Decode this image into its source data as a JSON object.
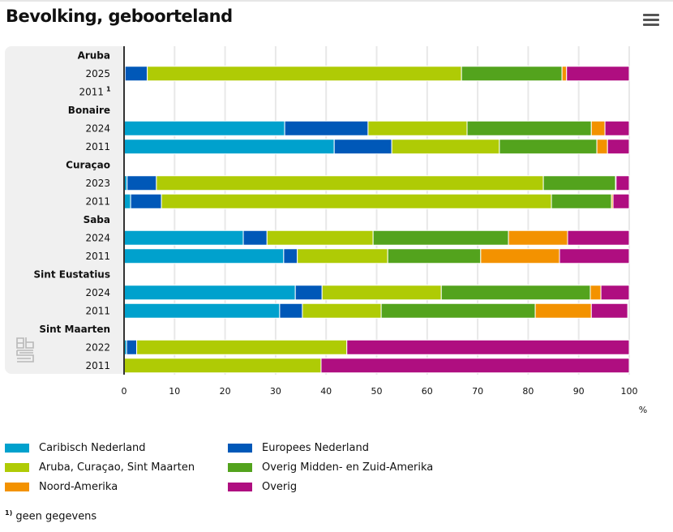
{
  "header": {
    "title": "Bevolking, geboorteland",
    "menu_icon": "hamburger-menu-icon"
  },
  "footnote": {
    "marker": "1)",
    "text": "geen gegevens"
  },
  "chart_data": {
    "type": "bar",
    "orientation": "horizontal",
    "stacked": true,
    "title": "Bevolking, geboorteland",
    "xlabel": "%",
    "ylabel": "",
    "xlim": [
      0,
      100
    ],
    "xticks": [
      "0",
      "10",
      "20",
      "30",
      "40",
      "50",
      "60",
      "70",
      "80",
      "90",
      "100"
    ],
    "grid": true,
    "legend_position": "bottom",
    "series": [
      {
        "name": "Caribisch Nederland",
        "color": "#00a1cd"
      },
      {
        "name": "Europees Nederland",
        "color": "#0058b8"
      },
      {
        "name": "Aruba, Curaçao, Sint Maarten",
        "color": "#afcb05"
      },
      {
        "name": "Overig Midden- en Zuid-Amerika",
        "color": "#53a31d"
      },
      {
        "name": "Noord-Amerika",
        "color": "#f39200"
      },
      {
        "name": "Overig",
        "color": "#af0e80"
      }
    ],
    "groups": [
      {
        "name": "Aruba",
        "rows": [
          {
            "label": "2025",
            "values": [
              0.2,
              4.4,
              62.2,
              19.9,
              0.9,
              12.4
            ]
          },
          {
            "label": "2011",
            "footnote": "1",
            "values": null
          }
        ]
      },
      {
        "name": "Bonaire",
        "rows": [
          {
            "label": "2024",
            "values": [
              31.8,
              16.5,
              19.6,
              24.6,
              2.7,
              4.8
            ]
          },
          {
            "label": "2011",
            "values": [
              41.6,
              11.4,
              21.3,
              19.3,
              2.1,
              4.3
            ]
          }
        ]
      },
      {
        "name": "Curaçao",
        "rows": [
          {
            "label": "2023",
            "values": [
              0.6,
              5.8,
              76.6,
              14.3,
              0.1,
              2.6
            ]
          },
          {
            "label": "2011",
            "values": [
              1.3,
              6.1,
              77.2,
              11.9,
              0.3,
              3.2
            ]
          }
        ]
      },
      {
        "name": "Saba",
        "rows": [
          {
            "label": "2024",
            "values": [
              23.6,
              4.7,
              21.0,
              26.8,
              11.7,
              12.2
            ]
          },
          {
            "label": "2011",
            "values": [
              31.6,
              2.7,
              17.9,
              18.4,
              15.6,
              13.8
            ]
          }
        ]
      },
      {
        "name": "Sint Eustatius",
        "rows": [
          {
            "label": "2024",
            "values": [
              33.9,
              5.3,
              23.6,
              29.5,
              2.1,
              5.6
            ]
          },
          {
            "label": "2011",
            "values": [
              30.8,
              4.5,
              15.6,
              30.5,
              11.1,
              7.2
            ]
          }
        ]
      },
      {
        "name": "Sint Maarten",
        "rows": [
          {
            "label": "2022",
            "values": [
              0.5,
              2.0,
              41.6,
              0,
              0,
              55.9
            ]
          },
          {
            "label": "2011",
            "values": [
              0,
              0,
              39.0,
              0,
              0,
              61.0
            ]
          }
        ]
      }
    ]
  }
}
